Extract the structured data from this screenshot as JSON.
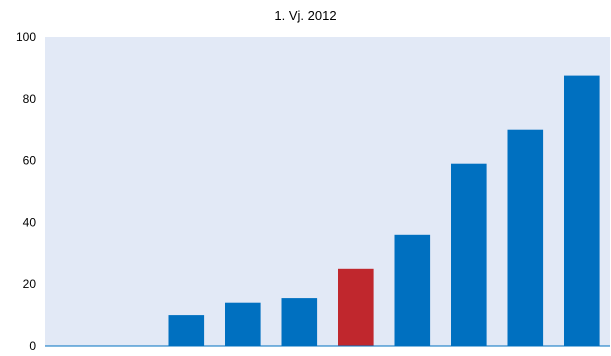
{
  "chart_data": {
    "type": "bar",
    "title": "1. Vj. 2012",
    "xlabel": "",
    "ylabel": "",
    "categories": [
      "",
      "",
      "",
      "",
      "",
      "",
      "",
      "",
      "",
      ""
    ],
    "values": [
      0,
      0,
      10,
      14,
      15.5,
      25,
      36,
      59,
      70,
      87.5
    ],
    "highlight_index": 5,
    "ylim": [
      0,
      100
    ],
    "yticks": [
      0,
      20,
      40,
      60,
      80,
      100
    ],
    "grid": false,
    "legend": "none",
    "colors": {
      "plot_background": "#e2e9f6",
      "bar": "#0070c0",
      "highlight": "#c0272d",
      "axis": "#0070c0"
    }
  }
}
